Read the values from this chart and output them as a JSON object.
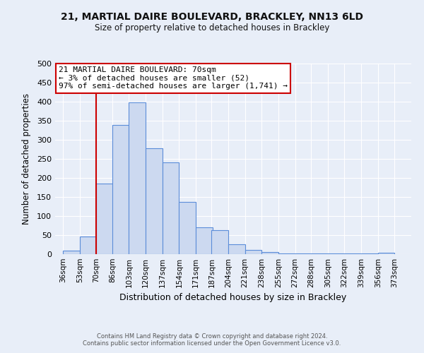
{
  "title1": "21, MARTIAL DAIRE BOULEVARD, BRACKLEY, NN13 6LD",
  "title2": "Size of property relative to detached houses in Brackley",
  "xlabel": "Distribution of detached houses by size in Brackley",
  "ylabel": "Number of detached properties",
  "bar_left_edges": [
    36,
    53,
    70,
    86,
    103,
    120,
    137,
    154,
    171,
    187,
    204,
    221,
    238,
    255,
    272,
    288,
    305,
    322,
    339,
    356
  ],
  "bar_heights": [
    10,
    46,
    185,
    338,
    398,
    278,
    240,
    137,
    70,
    63,
    26,
    12,
    5,
    2,
    1,
    1,
    1,
    1,
    1,
    3
  ],
  "bin_width": 17,
  "tick_labels": [
    "36sqm",
    "53sqm",
    "70sqm",
    "86sqm",
    "103sqm",
    "120sqm",
    "137sqm",
    "154sqm",
    "171sqm",
    "187sqm",
    "204sqm",
    "221sqm",
    "238sqm",
    "255sqm",
    "272sqm",
    "288sqm",
    "305sqm",
    "322sqm",
    "339sqm",
    "356sqm",
    "373sqm"
  ],
  "tick_positions": [
    36,
    53,
    70,
    86,
    103,
    120,
    137,
    154,
    171,
    187,
    204,
    221,
    238,
    255,
    272,
    288,
    305,
    322,
    339,
    356,
    373
  ],
  "property_line_x": 70,
  "bar_face_color": "#ccd9f0",
  "bar_edge_color": "#5b8dd9",
  "line_color": "#cc0000",
  "ylim": [
    0,
    500
  ],
  "yticks": [
    0,
    50,
    100,
    150,
    200,
    250,
    300,
    350,
    400,
    450,
    500
  ],
  "annotation_title": "21 MARTIAL DAIRE BOULEVARD: 70sqm",
  "annotation_line1": "← 3% of detached houses are smaller (52)",
  "annotation_line2": "97% of semi-detached houses are larger (1,741) →",
  "annotation_box_facecolor": "#ffffff",
  "annotation_box_edgecolor": "#cc0000",
  "bg_color": "#e8eef8",
  "grid_color": "#ffffff",
  "footer1": "Contains HM Land Registry data © Crown copyright and database right 2024.",
  "footer2": "Contains public sector information licensed under the Open Government Licence v3.0."
}
